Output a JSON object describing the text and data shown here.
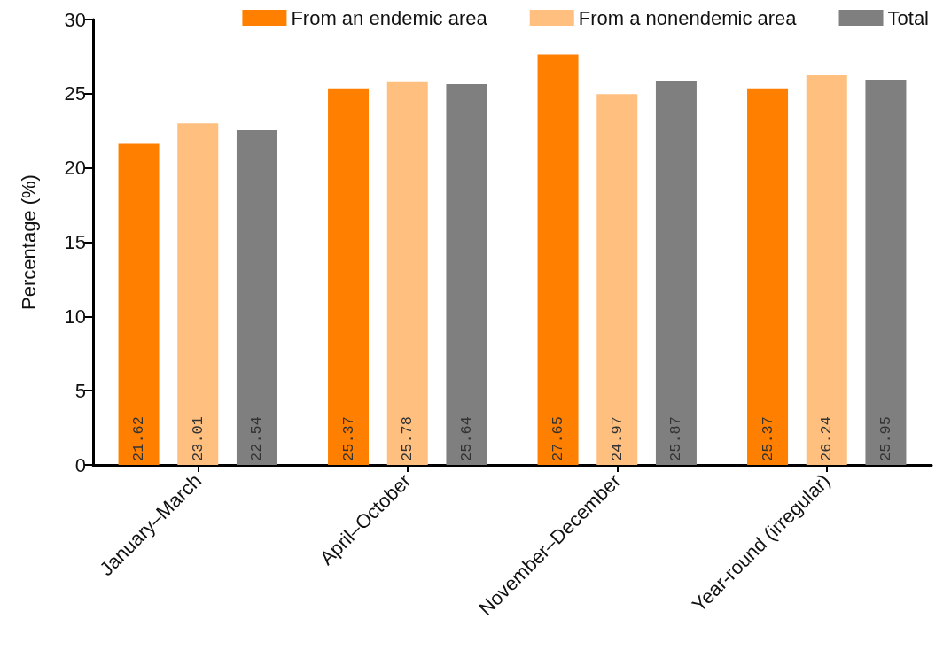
{
  "chart_data": {
    "type": "bar",
    "ylabel": "Percentage (%)",
    "categories": [
      "January–March",
      "April–October",
      "November–December",
      "Year-round (irregular)"
    ],
    "series": [
      {
        "name": "From an endemic area",
        "color": "#ff7f00",
        "values": [
          21.62,
          25.37,
          27.65,
          25.37
        ]
      },
      {
        "name": "From a nonendemic area",
        "color": "#ffbf7f",
        "values": [
          23.01,
          25.78,
          24.97,
          26.24
        ]
      },
      {
        "name": "Total",
        "color": "#7f7f7f",
        "values": [
          22.54,
          25.64,
          25.87,
          25.95
        ]
      }
    ],
    "ylim": [
      0,
      30
    ],
    "yticks": [
      0,
      5,
      10,
      15,
      20,
      25,
      30
    ],
    "grid": false,
    "legend": "top right",
    "data_labels": true
  }
}
